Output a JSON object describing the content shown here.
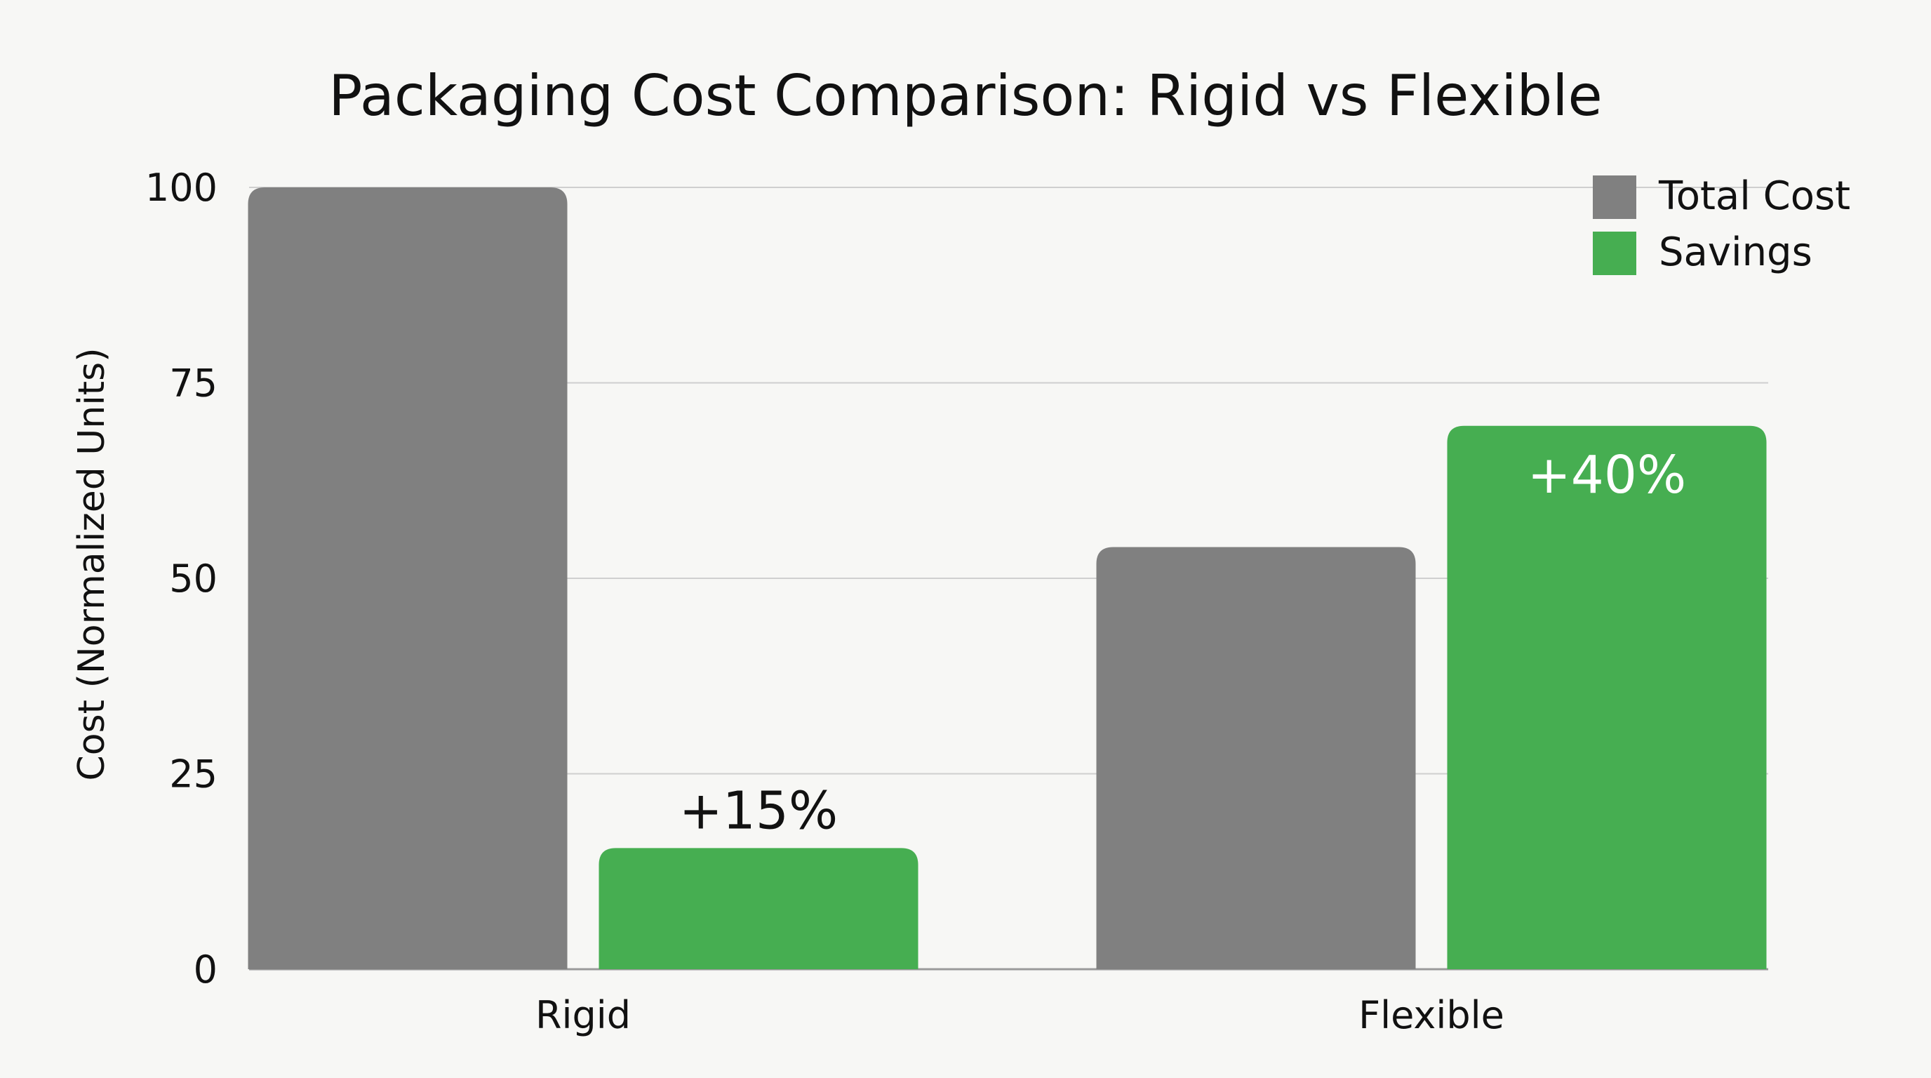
{
  "chart_data": {
    "type": "bar",
    "title": "Packaging Cost Comparison: Rigid vs Flexible",
    "xlabel": "",
    "ylabel": "Cost (Normalized Units)",
    "categories": [
      "Rigid",
      "Flexible"
    ],
    "ylim": [
      0,
      100
    ],
    "yticks": [
      0,
      25,
      50,
      75,
      100
    ],
    "grid": true,
    "legend_position": "top-right",
    "series": [
      {
        "name": "Total Cost",
        "color": "#808080",
        "values": [
          100,
          54
        ],
        "labels": [
          "",
          ""
        ]
      },
      {
        "name": "Savings",
        "color": "#46ae51",
        "values": [
          15.5,
          69.5
        ],
        "labels": [
          "+15%",
          "+40%"
        ]
      }
    ]
  }
}
